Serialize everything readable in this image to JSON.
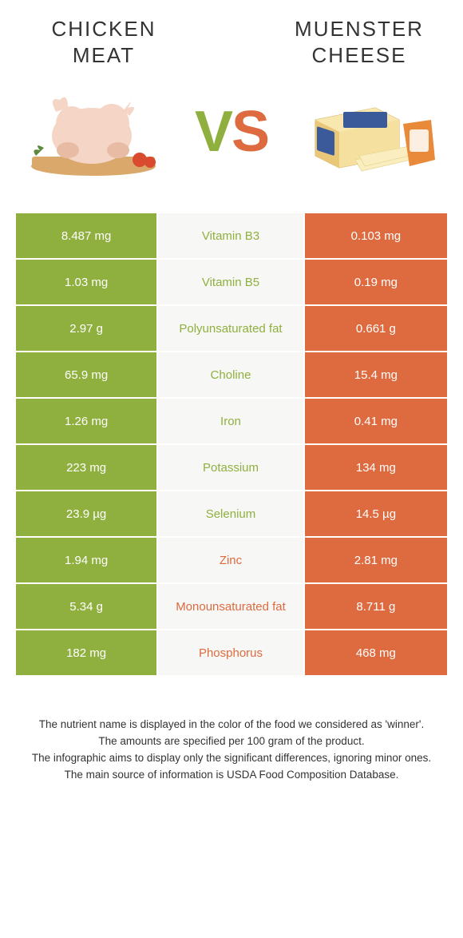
{
  "left_title": "CHICKEN MEAT",
  "right_title": "MUENSTER CHEESE",
  "vs_v": "V",
  "vs_s": "S",
  "colors": {
    "left": "#8fb03e",
    "right": "#de6a3f",
    "mid_bg": "#f7f7f5",
    "text": "#333333"
  },
  "rows": [
    {
      "left": "8.487 mg",
      "name": "Vitamin B3",
      "right": "0.103 mg",
      "winner": "left"
    },
    {
      "left": "1.03 mg",
      "name": "Vitamin B5",
      "right": "0.19 mg",
      "winner": "left"
    },
    {
      "left": "2.97 g",
      "name": "Polyunsaturated fat",
      "right": "0.661 g",
      "winner": "left"
    },
    {
      "left": "65.9 mg",
      "name": "Choline",
      "right": "15.4 mg",
      "winner": "left"
    },
    {
      "left": "1.26 mg",
      "name": "Iron",
      "right": "0.41 mg",
      "winner": "left"
    },
    {
      "left": "223 mg",
      "name": "Potassium",
      "right": "134 mg",
      "winner": "left"
    },
    {
      "left": "23.9 µg",
      "name": "Selenium",
      "right": "14.5 µg",
      "winner": "left"
    },
    {
      "left": "1.94 mg",
      "name": "Zinc",
      "right": "2.81 mg",
      "winner": "right"
    },
    {
      "left": "5.34 g",
      "name": "Monounsaturated fat",
      "right": "8.711 g",
      "winner": "right"
    },
    {
      "left": "182 mg",
      "name": "Phosphorus",
      "right": "468 mg",
      "winner": "right"
    }
  ],
  "footer_lines": [
    "The nutrient name is displayed in the color of the food we considered as 'winner'.",
    "The amounts are specified per 100 gram of the product.",
    "The infographic aims to display only the significant differences, ignoring minor ones.",
    "The main source of information is USDA Food Composition Database."
  ]
}
